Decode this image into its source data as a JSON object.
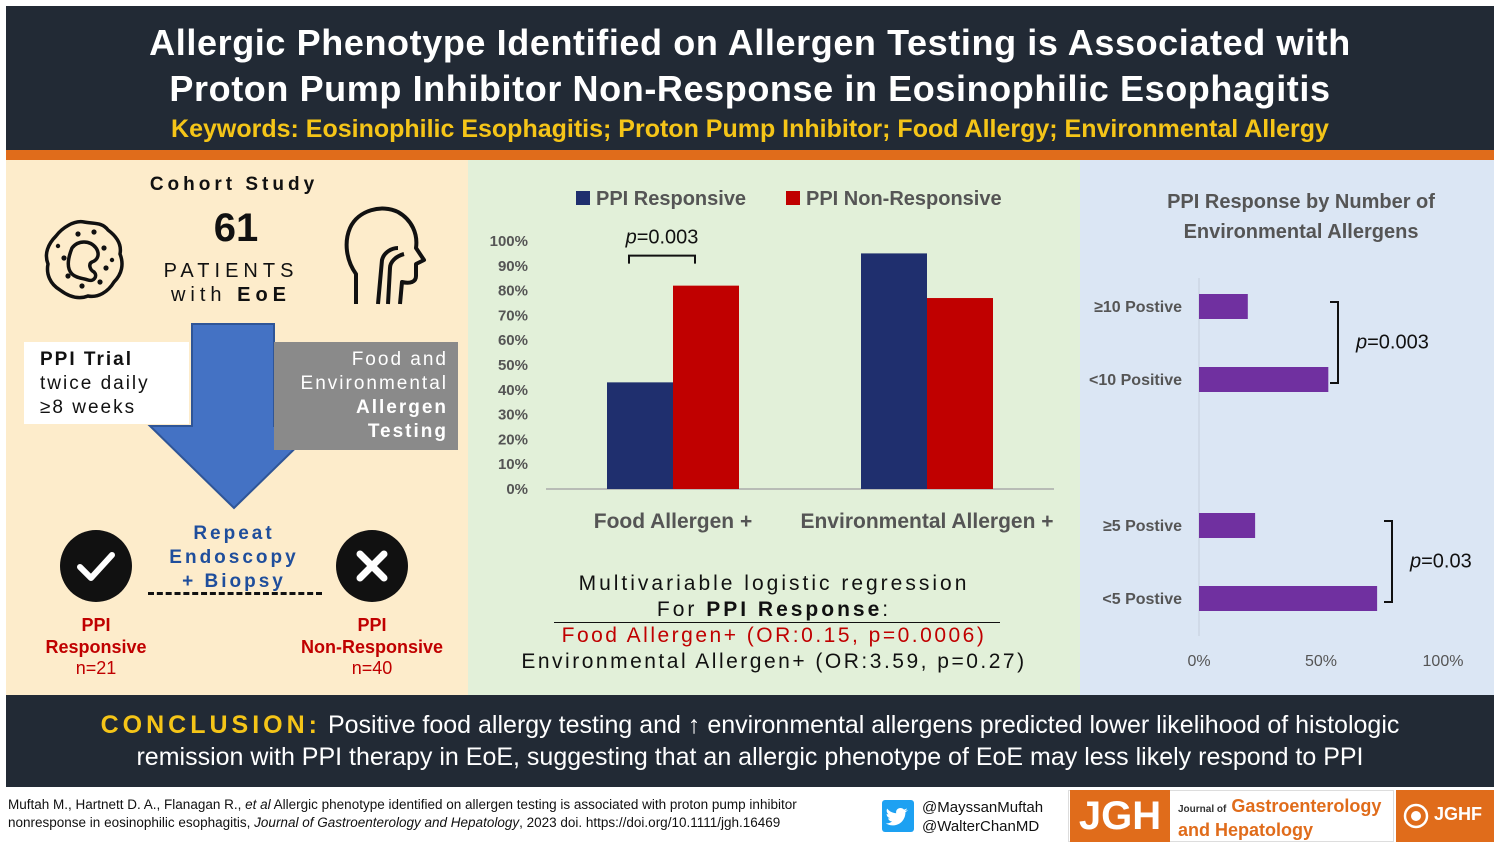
{
  "header": {
    "title_line1": "Allergic Phenotype Identified on Allergen Testing is Associated with",
    "title_line2": "Proton Pump Inhibitor Non-Response in Eosinophilic Esophagitis",
    "keywords": "Keywords: Eosinophilic Esophagitis; Proton Pump Inhibitor; Food Allergy; Environmental Allergy"
  },
  "left": {
    "cohort_title": "Cohort Study",
    "patients_number": "61",
    "patients_line1": "PATIENTS",
    "patients_with": "with ",
    "patients_eoe": "EoE",
    "ppi_trial_title": "PPI Trial",
    "ppi_trial_line2": "twice daily",
    "ppi_trial_line3": "≥8 weeks",
    "testing_line1": "Food and",
    "testing_line2": "Environmental",
    "testing_line3": "Allergen",
    "testing_line4": "Testing",
    "repeat_line1": "Repeat",
    "repeat_line2": "Endoscopy",
    "repeat_line3": "+ Biopsy",
    "responsive_label1": "PPI",
    "responsive_label2": "Responsive",
    "responsive_n": "n=21",
    "nonresponsive_label1": "PPI",
    "nonresponsive_label2": "Non-Responsive",
    "nonresponsive_n": "n=40",
    "check_icon": "check-icon",
    "x_icon": "x-icon",
    "eosinophil_icon": "eosinophil-cell-icon",
    "esophagus_icon": "esophagus-head-icon"
  },
  "mid": {
    "reg_title1": "Multivariable logistic regression",
    "reg_title2_prefix": "For ",
    "reg_title2_bold": "PPI Response",
    "reg_title2_suffix": ":",
    "reg_food": "Food Allergen+ (OR:0.15, p=0.0006)",
    "reg_env": "Environmental Allergen+ (OR:3.59, p=0.27)"
  },
  "chart_data": [
    {
      "type": "bar",
      "categories": [
        "Food Allergen +",
        "Environmental Allergen +"
      ],
      "series": [
        {
          "name": "PPI Responsive",
          "values": [
            43,
            95
          ],
          "color": "#1f2f6e"
        },
        {
          "name": "PPI Non-Responsive",
          "values": [
            82,
            77
          ],
          "color": "#c00000"
        }
      ],
      "ylim": [
        0,
        100
      ],
      "yticks": [
        "0%",
        "10%",
        "20%",
        "30%",
        "40%",
        "50%",
        "60%",
        "70%",
        "80%",
        "90%",
        "100%"
      ],
      "legend": "top",
      "annotation": {
        "p_label": "p",
        "p_value": "=0.003"
      }
    },
    {
      "type": "bar",
      "orientation": "horizontal",
      "title_line1": "PPI Response by Number of",
      "title_line2": "Environmental Allergens",
      "categories": [
        "≥10 Postive",
        "<10 Positive",
        "≥5 Postive",
        "<5 Postive"
      ],
      "values": [
        20,
        53,
        23,
        73
      ],
      "color": "#7030a0",
      "xlim": [
        0,
        100
      ],
      "xticks": [
        "0%",
        "50%",
        "100%"
      ],
      "annotations": [
        {
          "p_label": "p",
          "p_value": "=0.003"
        },
        {
          "p_label": "p",
          "p_value": "=0.03"
        }
      ]
    }
  ],
  "conclusion": {
    "label": "CONCLUSION:",
    "text1": " Positive food allergy testing and ↑ environmental allergens predicted lower likelihood of histologic",
    "text2": "remission with PPI therapy in EoE, suggesting that an allergic phenotype of EoE may less likely respond to PPI"
  },
  "footer": {
    "citation_authors": "Muftah M., Hartnett D. A., Flanagan R., ",
    "citation_etal": "et al",
    "citation_title": " Allergic phenotype identified on allergen testing is associated with proton pump inhibitor",
    "citation_title2": "nonresponse in eosinophilic esophagitis, ",
    "citation_journal": "Journal of Gastroenterology and Hepatology",
    "citation_tail": ", 2023 doi. https://doi.org/10.1111/jgh.16469",
    "handle1": "@MayssanMuftah",
    "handle2": "@WalterChanMD",
    "twitter_icon": "twitter-bird-icon",
    "logo_mark": "JGH",
    "logo_journal_of": "Journal of",
    "logo_line1": "Gastroenterology",
    "logo_line2": "and Hepatology",
    "jghf": "JGHF",
    "colors": {
      "dark": "#222a35",
      "orange": "#e06c1b",
      "gold": "#f5c518"
    }
  }
}
